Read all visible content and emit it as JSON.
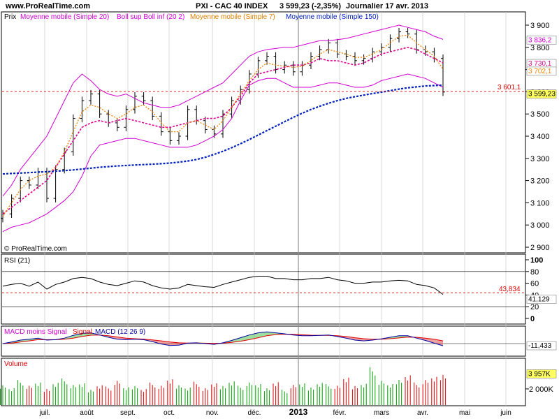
{
  "header": {
    "site": "www.ProRealTime.com",
    "title": "PXI - CAC 40 INDEX",
    "last": "3 599,23 (-2,35%)",
    "period": "Journalier 17 avr. 2013"
  },
  "colors": {
    "price": "#000000",
    "boll": "#d000d0",
    "sma20": "#e00090",
    "sma7": "#f08000",
    "sma150": "#0020c0",
    "reference": "#e00000",
    "rsi": "#000000",
    "macd": "#0000a0",
    "signal": "#e00000",
    "volume_up": "#00a000",
    "volume_down": "#e00000",
    "volume_line": "#ff00ff"
  },
  "chart_data": [
    {
      "type": "line",
      "panel": "price",
      "legend": [
        "Prix",
        "Moyenne mobile (Simple 20)",
        "Boll sup Boll inf (20 2)",
        "Moyenne mobile (Simple 7)",
        "Moyenne mobile (Simple 150)"
      ],
      "ylim": [
        2900,
        3950
      ],
      "yticks": [
        "3 900",
        "3 800",
        "3 700",
        "3 600",
        "3 500",
        "3 400",
        "3 300",
        "3 200",
        "3 100",
        "3 000",
        "2 900"
      ],
      "price_close": [
        3050,
        3120,
        3200,
        3180,
        3240,
        3120,
        3250,
        3330,
        3480,
        3560,
        3590,
        3500,
        3460,
        3440,
        3520,
        3580,
        3560,
        3490,
        3420,
        3380,
        3400,
        3520,
        3470,
        3430,
        3410,
        3500,
        3560,
        3610,
        3680,
        3740,
        3760,
        3700,
        3720,
        3690,
        3720,
        3760,
        3790,
        3820,
        3770,
        3760,
        3740,
        3750,
        3780,
        3800,
        3840,
        3870,
        3860,
        3790,
        3780,
        3750,
        3599
      ],
      "sma20": [
        3050,
        3080,
        3110,
        3140,
        3170,
        3200,
        3260,
        3320,
        3380,
        3440,
        3460,
        3470,
        3460,
        3470,
        3480,
        3470,
        3460,
        3450,
        3440,
        3440,
        3450,
        3460,
        3470,
        3480,
        3480,
        3490,
        3530,
        3580,
        3640,
        3680,
        3690,
        3700,
        3710,
        3720,
        3720,
        3730,
        3750,
        3740,
        3740,
        3730,
        3720,
        3730,
        3750,
        3770,
        3780,
        3790,
        3800,
        3790,
        3770,
        3750,
        3730
      ],
      "boll_upper": [
        3130,
        3180,
        3250,
        3300,
        3350,
        3400,
        3480,
        3560,
        3640,
        3680,
        3650,
        3610,
        3590,
        3580,
        3590,
        3570,
        3550,
        3540,
        3530,
        3530,
        3540,
        3560,
        3580,
        3600,
        3620,
        3640,
        3680,
        3720,
        3760,
        3780,
        3790,
        3795,
        3800,
        3800,
        3810,
        3820,
        3830,
        3830,
        3835,
        3840,
        3850,
        3860,
        3870,
        3880,
        3890,
        3900,
        3890,
        3880,
        3870,
        3850,
        3836
      ],
      "boll_lower": [
        2970,
        2990,
        3000,
        3010,
        3030,
        3050,
        3080,
        3110,
        3150,
        3220,
        3310,
        3360,
        3370,
        3380,
        3390,
        3390,
        3380,
        3370,
        3360,
        3350,
        3350,
        3350,
        3360,
        3380,
        3400,
        3430,
        3480,
        3560,
        3630,
        3650,
        3660,
        3660,
        3640,
        3620,
        3620,
        3620,
        3630,
        3640,
        3640,
        3630,
        3620,
        3620,
        3630,
        3650,
        3660,
        3670,
        3680,
        3670,
        3660,
        3640,
        3620
      ],
      "sma7": [
        3040,
        3100,
        3160,
        3200,
        3220,
        3230,
        3260,
        3330,
        3420,
        3510,
        3540,
        3530,
        3500,
        3480,
        3500,
        3530,
        3540,
        3510,
        3460,
        3420,
        3420,
        3460,
        3470,
        3450,
        3430,
        3470,
        3530,
        3590,
        3650,
        3700,
        3730,
        3720,
        3715,
        3710,
        3715,
        3740,
        3770,
        3790,
        3780,
        3770,
        3755,
        3755,
        3770,
        3790,
        3820,
        3850,
        3855,
        3820,
        3790,
        3760,
        3702
      ],
      "sma150": [
        3230,
        3232,
        3234,
        3236,
        3238,
        3240,
        3242,
        3245,
        3248,
        3252,
        3256,
        3260,
        3263,
        3266,
        3268,
        3270,
        3272,
        3274,
        3276,
        3279,
        3283,
        3288,
        3295,
        3305,
        3318,
        3332,
        3348,
        3366,
        3385,
        3405,
        3425,
        3445,
        3465,
        3485,
        3503,
        3520,
        3535,
        3548,
        3560,
        3570,
        3578,
        3585,
        3592,
        3598,
        3605,
        3612,
        3618,
        3622,
        3626,
        3628,
        3630
      ],
      "labels": {
        "ref": "3 601,1",
        "last": "3 599,23",
        "sma7": "3 702,1",
        "sma20": "3 730,1",
        "upper": "3 836,2"
      },
      "reference": 3601.1
    },
    {
      "type": "line",
      "panel": "rsi",
      "legend": [
        "RSI (21)"
      ],
      "ylim": [
        -10,
        100
      ],
      "yticks": [
        "100",
        "80",
        "60",
        "40",
        "20",
        "0"
      ],
      "values": [
        55,
        58,
        60,
        55,
        62,
        50,
        58,
        62,
        68,
        70,
        68,
        62,
        58,
        56,
        60,
        64,
        62,
        56,
        52,
        50,
        52,
        58,
        56,
        54,
        53,
        58,
        62,
        66,
        70,
        72,
        72,
        68,
        68,
        66,
        66,
        68,
        68,
        70,
        66,
        64,
        60,
        60,
        62,
        62,
        64,
        65,
        64,
        58,
        56,
        52,
        41
      ],
      "labels": {
        "ref": "43,834",
        "last": "41,129"
      },
      "reference": 43.834
    },
    {
      "type": "area",
      "panel": "macd",
      "legend": [
        "MACD moins Signal",
        "Signal",
        "MACD (12 26 9)"
      ],
      "series": [
        {
          "name": "MACD",
          "values": [
            0,
            8,
            18,
            22,
            28,
            18,
            20,
            28,
            42,
            52,
            55,
            44,
            32,
            22,
            20,
            22,
            20,
            10,
            -2,
            -10,
            -8,
            2,
            4,
            0,
            -4,
            4,
            16,
            30,
            44,
            55,
            60,
            55,
            50,
            44,
            40,
            40,
            42,
            44,
            36,
            28,
            18,
            14,
            18,
            24,
            32,
            40,
            40,
            28,
            16,
            2,
            -11
          ]
        },
        {
          "name": "Signal",
          "values": [
            0,
            3,
            8,
            14,
            20,
            20,
            20,
            22,
            28,
            36,
            43,
            44,
            40,
            34,
            28,
            25,
            23,
            19,
            14,
            8,
            4,
            3,
            3,
            2,
            1,
            2,
            6,
            12,
            20,
            30,
            40,
            46,
            48,
            47,
            45,
            43,
            42,
            42,
            40,
            36,
            30,
            25,
            22,
            22,
            25,
            29,
            33,
            32,
            28,
            22,
            14
          ]
        }
      ],
      "labels": {
        "last": "-11,433"
      }
    },
    {
      "type": "bar",
      "panel": "volume",
      "legend": [
        "Volume"
      ],
      "yticks": [
        "2 000K"
      ],
      "values": [
        2600,
        2200,
        3100,
        2400,
        2800,
        2100,
        2900,
        3300,
        2500,
        2700,
        2000,
        2600,
        2300,
        3000,
        2200,
        2500,
        2100,
        2800,
        2400,
        3200,
        2600,
        2300,
        2900,
        2100,
        2700,
        2500,
        3100,
        2400,
        2800,
        2600,
        2200,
        3000,
        1900,
        2500,
        2700,
        2300,
        2900,
        2600,
        2400,
        3400,
        2500,
        2800,
        4700,
        3000,
        2600,
        3300,
        3900,
        2800,
        3100,
        3500,
        3957
      ],
      "labels": {
        "last": "3 957K"
      }
    }
  ],
  "x_axis": {
    "labels": [
      "juil.",
      "août",
      "sept.",
      "oct.",
      "nov.",
      "déc.",
      "2013",
      "févr.",
      "mars",
      "avr.",
      "mai",
      "juin"
    ],
    "bold_index": 6
  },
  "watermark": "© ProRealTime.com"
}
